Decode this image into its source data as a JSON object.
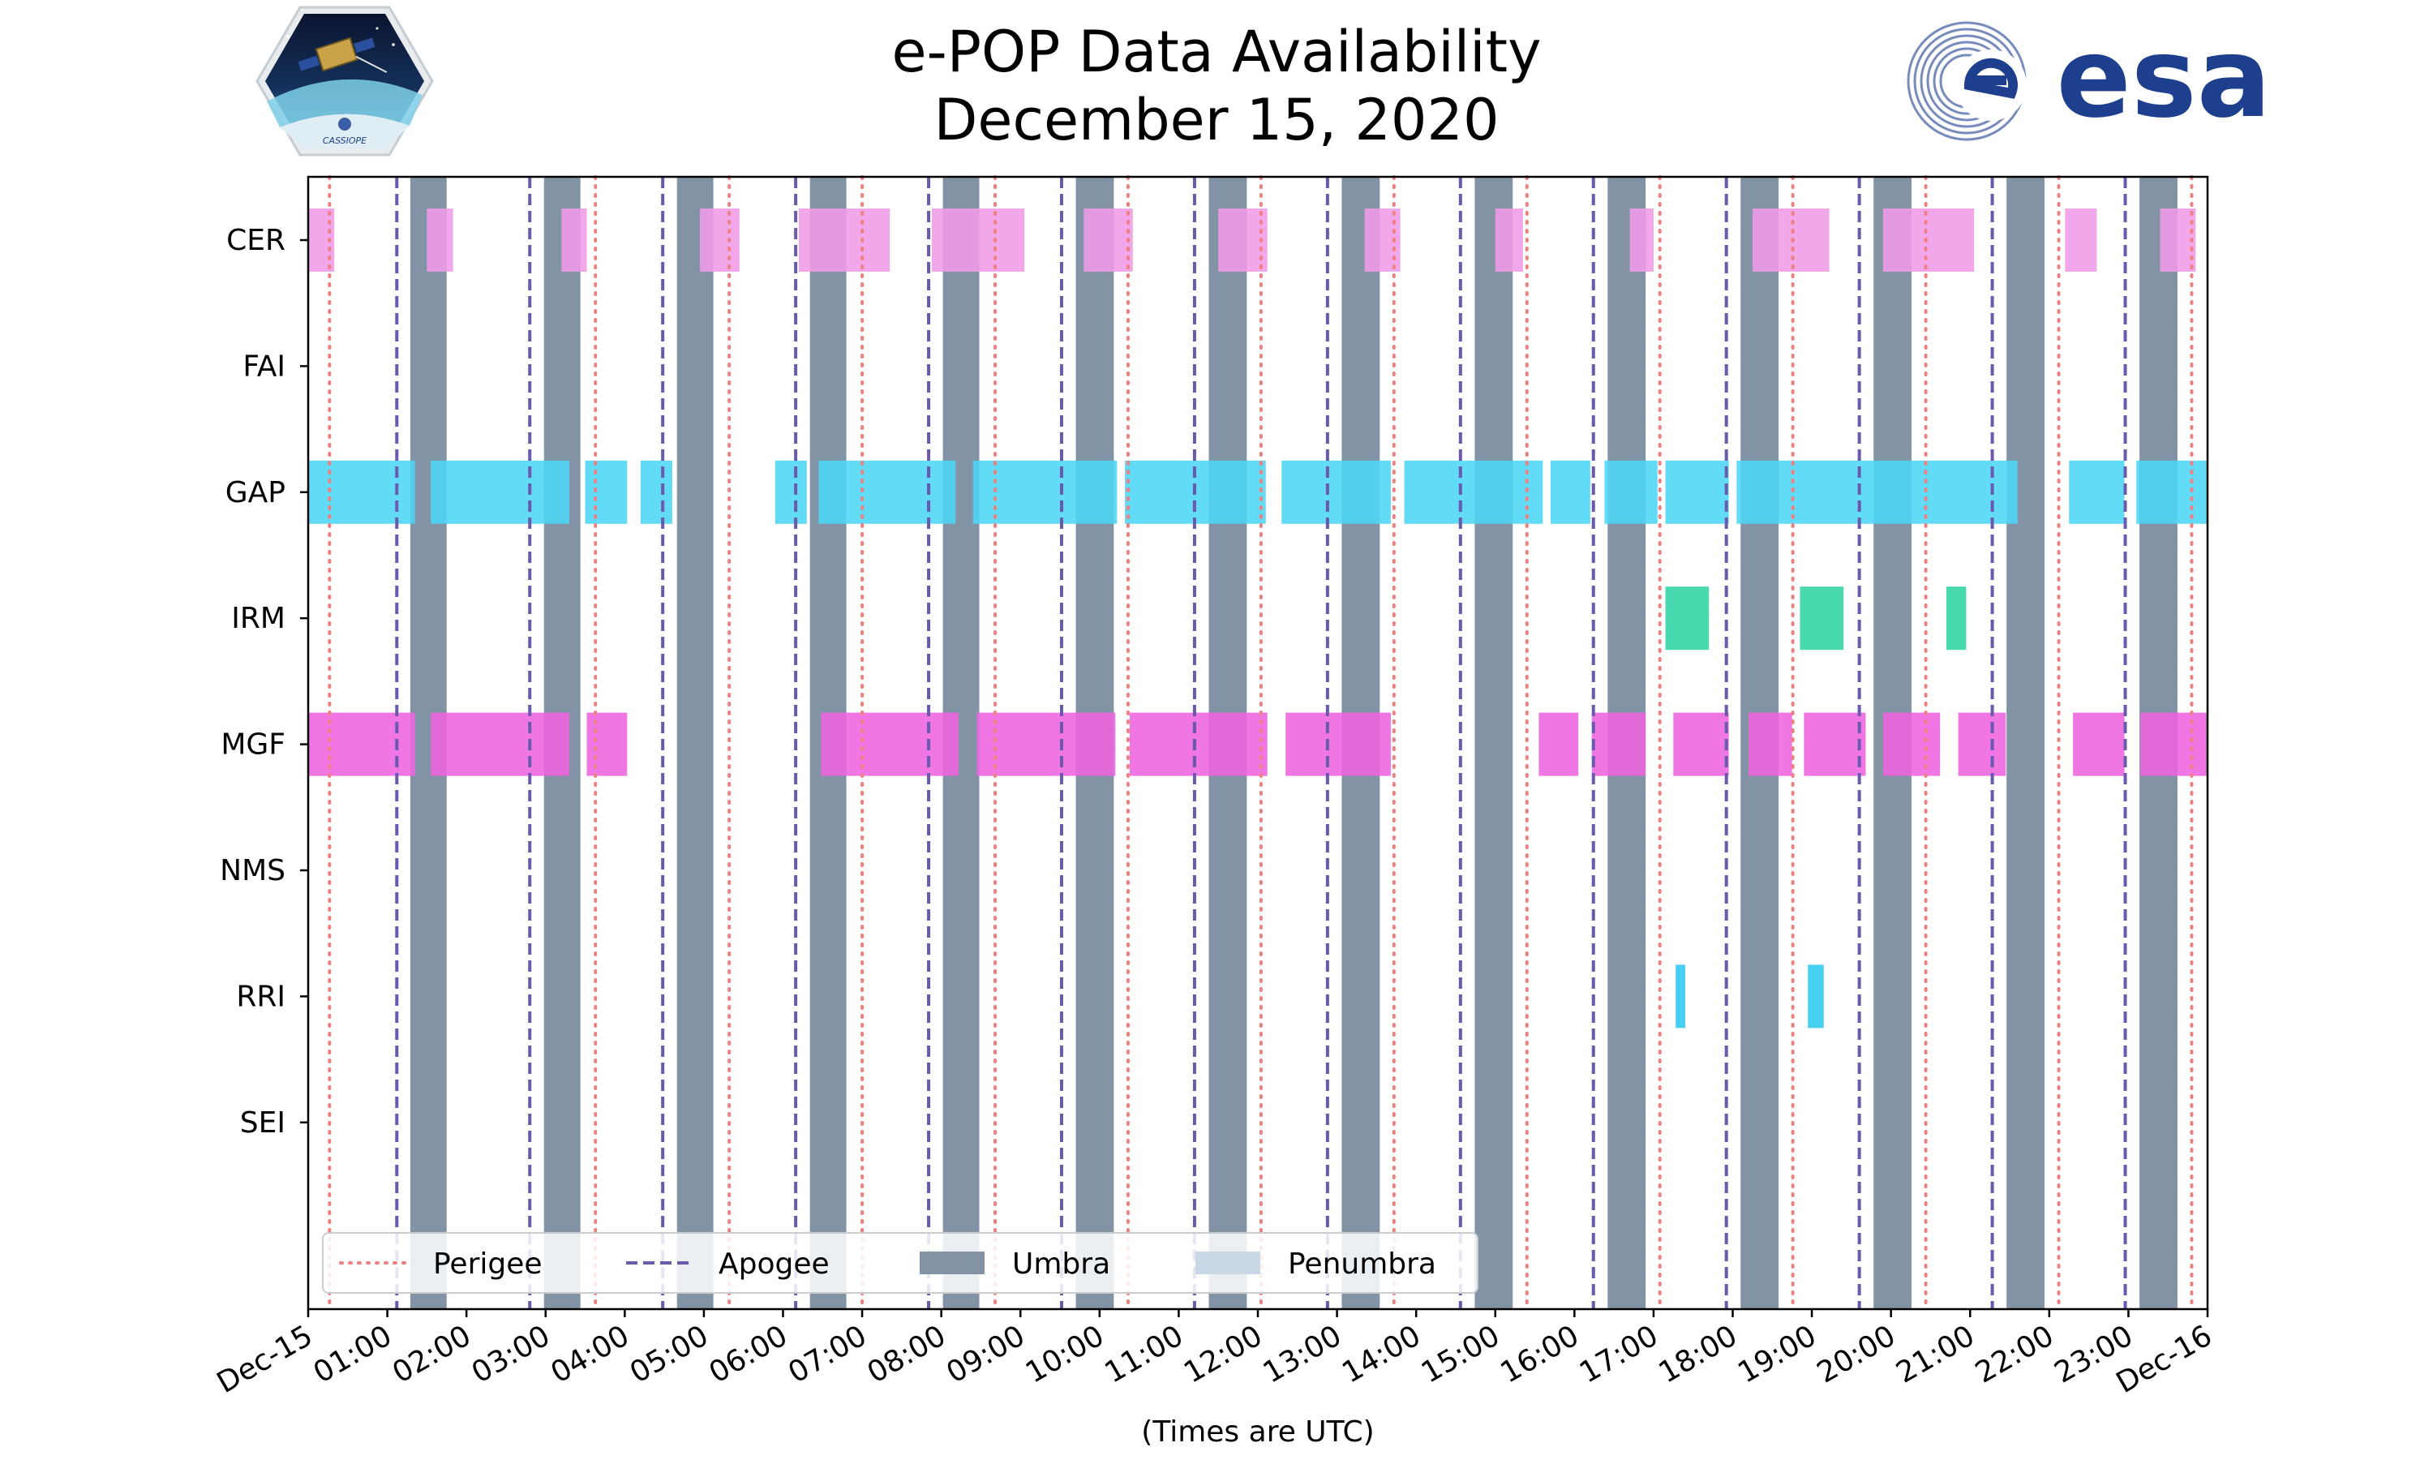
{
  "title": {
    "line1": "e-POP Data Availability",
    "line2": "December 15, 2020"
  },
  "logos": {
    "left": "cassiope-mission-badge",
    "left_text": "CASSIOPE",
    "right": "esa-logo",
    "right_text": "esa"
  },
  "colors": {
    "umbra": "#8393a6",
    "penumbra": "#c8d6e6",
    "perigee": "#f07f80",
    "apogee": "#6a5aad",
    "CER": "#f09be8",
    "GAP": "#4cd6f6",
    "IRM": "#2fd4a4",
    "MGF": "#ee64df",
    "RRI": "#2cc8ec",
    "esa_blue": "#1d3f8e"
  },
  "chart_data": {
    "type": "timeline",
    "title": "e-POP Data Availability December 15, 2020",
    "xlabel": "(Times are UTC)",
    "xlim": [
      0,
      24
    ],
    "x_unit": "hours UTC",
    "xticks": [
      {
        "value": 0,
        "label": "Dec-15"
      },
      {
        "value": 1,
        "label": "01:00"
      },
      {
        "value": 2,
        "label": "02:00"
      },
      {
        "value": 3,
        "label": "03:00"
      },
      {
        "value": 4,
        "label": "04:00"
      },
      {
        "value": 5,
        "label": "05:00"
      },
      {
        "value": 6,
        "label": "06:00"
      },
      {
        "value": 7,
        "label": "07:00"
      },
      {
        "value": 8,
        "label": "08:00"
      },
      {
        "value": 9,
        "label": "09:00"
      },
      {
        "value": 10,
        "label": "10:00"
      },
      {
        "value": 11,
        "label": "11:00"
      },
      {
        "value": 12,
        "label": "12:00"
      },
      {
        "value": 13,
        "label": "13:00"
      },
      {
        "value": 14,
        "label": "14:00"
      },
      {
        "value": 15,
        "label": "15:00"
      },
      {
        "value": 16,
        "label": "16:00"
      },
      {
        "value": 17,
        "label": "17:00"
      },
      {
        "value": 18,
        "label": "18:00"
      },
      {
        "value": 19,
        "label": "19:00"
      },
      {
        "value": 20,
        "label": "20:00"
      },
      {
        "value": 21,
        "label": "21:00"
      },
      {
        "value": 22,
        "label": "22:00"
      },
      {
        "value": 23,
        "label": "23:00"
      },
      {
        "value": 24,
        "label": "Dec-16"
      }
    ],
    "instruments": [
      "CER",
      "FAI",
      "GAP",
      "IRM",
      "MGF",
      "NMS",
      "RRI",
      "SEI"
    ],
    "umbra": [
      [
        1.29,
        1.75
      ],
      [
        2.98,
        3.44
      ],
      [
        4.66,
        5.12
      ],
      [
        6.34,
        6.8
      ],
      [
        8.02,
        8.48
      ],
      [
        9.7,
        10.18
      ],
      [
        11.38,
        11.86
      ],
      [
        13.06,
        13.54
      ],
      [
        14.74,
        15.22
      ],
      [
        16.42,
        16.9
      ],
      [
        18.1,
        18.58
      ],
      [
        19.78,
        20.26
      ],
      [
        21.46,
        21.94
      ],
      [
        23.14,
        23.62
      ]
    ],
    "penumbra": [],
    "perigee": [
      0.27,
      3.63,
      5.32,
      7.0,
      8.68,
      10.36,
      12.04,
      13.72,
      15.4,
      17.08,
      18.76,
      20.44,
      22.12,
      23.8
    ],
    "apogee": [
      1.12,
      2.8,
      4.48,
      6.16,
      7.84,
      9.52,
      11.2,
      12.88,
      14.56,
      16.24,
      17.92,
      19.6,
      21.28,
      22.96
    ],
    "segments": {
      "CER": [
        [
          0.0,
          0.33
        ],
        [
          1.5,
          1.83
        ],
        [
          3.2,
          3.52
        ],
        [
          4.95,
          5.45
        ],
        [
          6.2,
          7.35
        ],
        [
          7.88,
          9.05
        ],
        [
          9.8,
          10.42
        ],
        [
          11.5,
          12.12
        ],
        [
          13.35,
          13.8
        ],
        [
          15.0,
          15.35
        ],
        [
          16.7,
          17.0
        ],
        [
          18.25,
          19.22
        ],
        [
          19.9,
          21.05
        ],
        [
          22.2,
          22.6
        ],
        [
          23.4,
          23.85
        ]
      ],
      "FAI": [],
      "GAP": [
        [
          0.0,
          1.35
        ],
        [
          1.55,
          3.3
        ],
        [
          3.5,
          4.03
        ],
        [
          4.2,
          4.6
        ],
        [
          5.9,
          6.3
        ],
        [
          6.45,
          8.18
        ],
        [
          8.4,
          10.22
        ],
        [
          10.32,
          12.1
        ],
        [
          12.3,
          13.68
        ],
        [
          13.85,
          15.6
        ],
        [
          15.7,
          16.2
        ],
        [
          16.38,
          17.05
        ],
        [
          17.15,
          17.95
        ],
        [
          18.05,
          21.6
        ],
        [
          22.25,
          22.95
        ],
        [
          23.1,
          24.0
        ]
      ],
      "IRM": [
        [
          17.15,
          17.7
        ],
        [
          18.85,
          19.4
        ],
        [
          20.7,
          20.95
        ]
      ],
      "MGF": [
        [
          0.0,
          1.35
        ],
        [
          1.55,
          3.3
        ],
        [
          3.52,
          4.03
        ],
        [
          6.48,
          8.22
        ],
        [
          8.45,
          10.2
        ],
        [
          10.38,
          12.12
        ],
        [
          12.35,
          13.68
        ],
        [
          15.55,
          16.05
        ],
        [
          16.22,
          16.9
        ],
        [
          17.25,
          17.95
        ],
        [
          18.2,
          18.75
        ],
        [
          18.9,
          19.68
        ],
        [
          19.9,
          20.62
        ],
        [
          20.85,
          21.45
        ],
        [
          22.3,
          22.95
        ],
        [
          23.15,
          24.0
        ]
      ],
      "NMS": [],
      "RRI": [
        [
          17.28,
          17.4
        ],
        [
          18.95,
          19.15
        ]
      ],
      "SEI": []
    },
    "legend": {
      "location": "lower-left",
      "entries": [
        "Perigee",
        "Apogee",
        "Umbra",
        "Penumbra"
      ]
    },
    "grid": false
  }
}
